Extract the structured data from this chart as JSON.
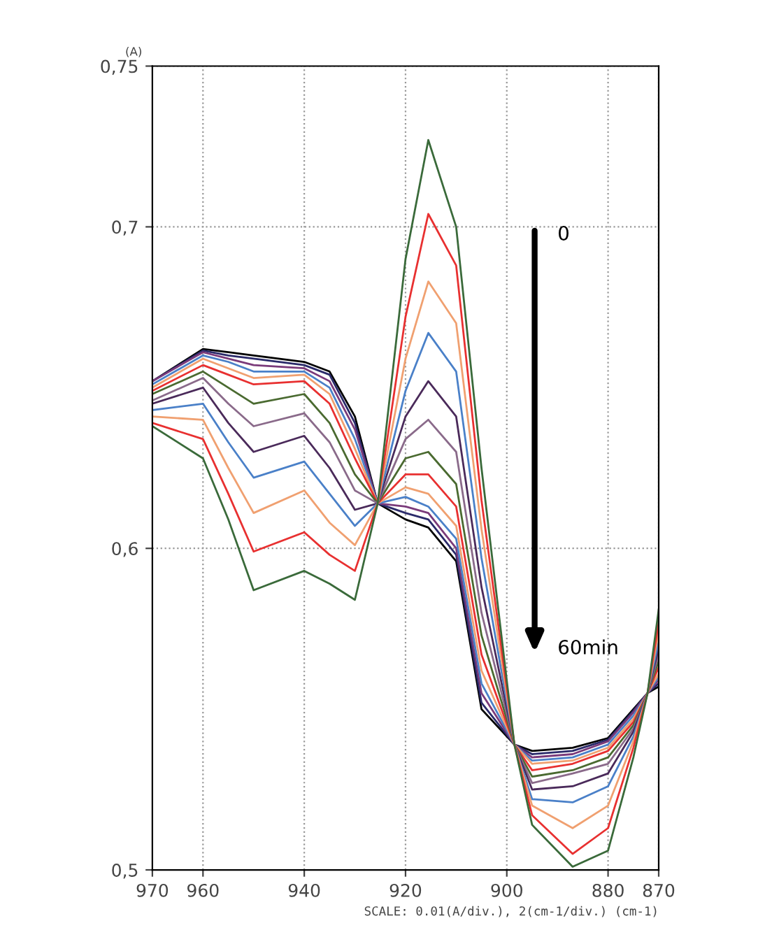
{
  "chart_data": {
    "type": "line",
    "ylabel": "(A)",
    "x": [
      970,
      960,
      955,
      950,
      940,
      935,
      930,
      925.5,
      920,
      915.5,
      910,
      905,
      898.5,
      895,
      887,
      880,
      875,
      872.2,
      870
    ],
    "xlim": [
      970,
      870
    ],
    "xticks": [
      970,
      960,
      940,
      920,
      900,
      880,
      870
    ],
    "ylim": [
      0.5,
      0.75
    ],
    "yticks": [
      {
        "value": 0.5,
        "label": "0,5"
      },
      {
        "value": 0.6,
        "label": "0,6"
      },
      {
        "value": 0.7,
        "label": "0,7"
      },
      {
        "value": 0.75,
        "label": "0,75"
      }
    ],
    "grid": true,
    "legend": false,
    "marker": "none",
    "line_style": "solid",
    "annotations": [
      "0",
      "60min",
      "SCALE: 0.01(A/div.), 2(cm-1/div.) (cm-1)"
    ],
    "series": [
      {
        "color": "#000000",
        "values": [
          0.652,
          0.662,
          0.661,
          0.66,
          0.658,
          0.655,
          0.641,
          0.614,
          0.609,
          0.6065,
          0.596,
          0.55,
          0.539,
          0.537,
          0.538,
          0.541,
          0.55,
          0.555,
          0.557
        ]
      },
      {
        "color": "#2a2a6a",
        "values": [
          0.652,
          0.6615,
          0.66,
          0.659,
          0.657,
          0.654,
          0.639,
          0.614,
          0.611,
          0.609,
          0.598,
          0.552,
          0.539,
          0.536,
          0.537,
          0.5405,
          0.5495,
          0.555,
          0.558
        ]
      },
      {
        "color": "#7a3a7a",
        "values": [
          0.652,
          0.661,
          0.659,
          0.657,
          0.656,
          0.652,
          0.637,
          0.614,
          0.613,
          0.611,
          0.6,
          0.555,
          0.539,
          0.535,
          0.536,
          0.54,
          0.549,
          0.555,
          0.559
        ]
      },
      {
        "color": "#4a80c8",
        "values": [
          0.651,
          0.66,
          0.658,
          0.655,
          0.655,
          0.65,
          0.634,
          0.614,
          0.616,
          0.613,
          0.603,
          0.558,
          0.539,
          0.534,
          0.535,
          0.539,
          0.548,
          0.555,
          0.56
        ]
      },
      {
        "color": "#f0a070",
        "values": [
          0.65,
          0.659,
          0.656,
          0.653,
          0.654,
          0.648,
          0.631,
          0.614,
          0.619,
          0.617,
          0.607,
          0.562,
          0.539,
          0.533,
          0.534,
          0.538,
          0.547,
          0.555,
          0.561
        ]
      },
      {
        "color": "#e83030",
        "values": [
          0.649,
          0.657,
          0.654,
          0.651,
          0.652,
          0.645,
          0.628,
          0.614,
          0.623,
          0.623,
          0.613,
          0.567,
          0.539,
          0.531,
          0.533,
          0.537,
          0.546,
          0.555,
          0.563
        ]
      },
      {
        "color": "#4a6a30",
        "values": [
          0.648,
          0.655,
          0.65,
          0.645,
          0.648,
          0.639,
          0.623,
          0.614,
          0.628,
          0.63,
          0.62,
          0.573,
          0.539,
          0.529,
          0.531,
          0.535,
          0.545,
          0.555,
          0.565
        ]
      },
      {
        "color": "#8a6a8a",
        "values": [
          0.646,
          0.653,
          0.645,
          0.638,
          0.642,
          0.633,
          0.618,
          0.614,
          0.634,
          0.64,
          0.63,
          0.58,
          0.539,
          0.527,
          0.53,
          0.533,
          0.544,
          0.555,
          0.567
        ]
      },
      {
        "color": "#4a2a5a",
        "values": [
          0.645,
          0.65,
          0.639,
          0.63,
          0.635,
          0.625,
          0.612,
          0.614,
          0.641,
          0.652,
          0.641,
          0.588,
          0.539,
          0.525,
          0.526,
          0.53,
          0.543,
          0.555,
          0.569
        ]
      },
      {
        "color": "#4a80c8",
        "values": [
          0.643,
          0.645,
          0.633,
          0.622,
          0.627,
          0.617,
          0.607,
          0.614,
          0.649,
          0.667,
          0.655,
          0.597,
          0.539,
          0.522,
          0.521,
          0.526,
          0.5415,
          0.555,
          0.571
        ]
      },
      {
        "color": "#f0a070",
        "values": [
          0.641,
          0.64,
          0.625,
          0.611,
          0.618,
          0.608,
          0.601,
          0.614,
          0.659,
          0.683,
          0.67,
          0.606,
          0.539,
          0.52,
          0.513,
          0.52,
          0.54,
          0.555,
          0.574
        ]
      },
      {
        "color": "#e83030",
        "values": [
          0.639,
          0.634,
          0.617,
          0.599,
          0.605,
          0.598,
          0.593,
          0.614,
          0.672,
          0.704,
          0.688,
          0.615,
          0.539,
          0.517,
          0.505,
          0.513,
          0.538,
          0.555,
          0.577
        ]
      },
      {
        "color": "#3a6a3a",
        "values": [
          0.638,
          0.628,
          0.609,
          0.587,
          0.593,
          0.589,
          0.584,
          0.614,
          0.69,
          0.727,
          0.7,
          0.625,
          0.539,
          0.514,
          0.501,
          0.506,
          0.535,
          0.555,
          0.581
        ]
      }
    ]
  }
}
